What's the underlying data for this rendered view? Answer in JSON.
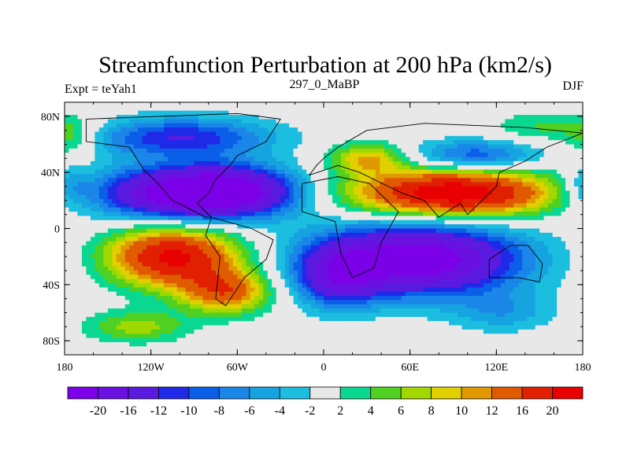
{
  "chart_data": {
    "type": "heatmap",
    "title": "Streamfunction Perturbation at 200 hPa (km2/s)",
    "left_string": "Expt = teYah1",
    "center_string": "297_0_MaBP",
    "right_string": "DJF",
    "xlabel": "",
    "ylabel": "",
    "xlim": [
      -180,
      180
    ],
    "ylim": [
      -90,
      90
    ],
    "x_ticks": [
      {
        "value": -180,
        "label": "180"
      },
      {
        "value": -120,
        "label": "120W"
      },
      {
        "value": -60,
        "label": "60W"
      },
      {
        "value": 0,
        "label": "0"
      },
      {
        "value": 60,
        "label": "60E"
      },
      {
        "value": 120,
        "label": "120E"
      },
      {
        "value": 180,
        "label": "180"
      }
    ],
    "y_ticks": [
      {
        "value": 80,
        "label": "80N"
      },
      {
        "value": 40,
        "label": "40N"
      },
      {
        "value": 0,
        "label": "0"
      },
      {
        "value": -40,
        "label": "40S"
      },
      {
        "value": -80,
        "label": "80S"
      }
    ],
    "colorbar": {
      "levels": [
        -20,
        -16,
        -12,
        -10,
        -8,
        -6,
        -4,
        -2,
        2,
        4,
        6,
        8,
        10,
        12,
        16,
        20
      ],
      "labels": [
        "-20",
        "-16",
        "-12",
        "-10",
        "-8",
        "-6",
        "-4",
        "-2",
        "2",
        "4",
        "6",
        "8",
        "10",
        "12",
        "16",
        "20"
      ],
      "colors": [
        "#7b00e8",
        "#6a10e0",
        "#5a1ae0",
        "#1e2ae8",
        "#0a5ee8",
        "#1a86e8",
        "#16a4e0",
        "#1cbee0",
        "#e8e8e8",
        "#0ad890",
        "#50d020",
        "#a0d800",
        "#e0d000",
        "#e09a00",
        "#e05a00",
        "#e02000",
        "#e80000"
      ]
    },
    "anomalies": [
      {
        "lon": -95,
        "lat": 25,
        "amp": -24,
        "slon": 45,
        "slat": 13
      },
      {
        "lon": -60,
        "lat": 28,
        "amp": -10,
        "slon": 30,
        "slat": 12
      },
      {
        "lon": -105,
        "lat": -20,
        "amp": 21,
        "slon": 32,
        "slat": 15
      },
      {
        "lon": -68,
        "lat": -45,
        "amp": 14,
        "slon": 22,
        "slat": 11
      },
      {
        "lon": 65,
        "lat": -22,
        "amp": -24,
        "slon": 50,
        "slat": 18
      },
      {
        "lon": 10,
        "lat": -35,
        "amp": -12,
        "slon": 20,
        "slat": 15
      },
      {
        "lon": 90,
        "lat": 25,
        "amp": 24,
        "slon": 50,
        "slat": 12
      },
      {
        "lon": 30,
        "lat": 50,
        "amp": 10,
        "slon": 18,
        "slat": 8
      },
      {
        "lon": -100,
        "lat": 65,
        "amp": -12,
        "slon": 45,
        "slat": 10
      },
      {
        "lon": 105,
        "lat": 52,
        "amp": -10,
        "slon": 30,
        "slat": 8
      },
      {
        "lon": -175,
        "lat": 62,
        "amp": 5,
        "slon": 12,
        "slat": 10
      },
      {
        "lon": 160,
        "lat": 72,
        "amp": 5,
        "slon": 30,
        "slat": 8
      },
      {
        "lon": -130,
        "lat": -70,
        "amp": 7,
        "slon": 25,
        "slat": 8
      },
      {
        "lon": 125,
        "lat": -60,
        "amp": -5,
        "slon": 25,
        "slat": 10
      },
      {
        "lon": -178,
        "lat": 30,
        "amp": -5,
        "slon": 10,
        "slat": 10
      }
    ]
  }
}
